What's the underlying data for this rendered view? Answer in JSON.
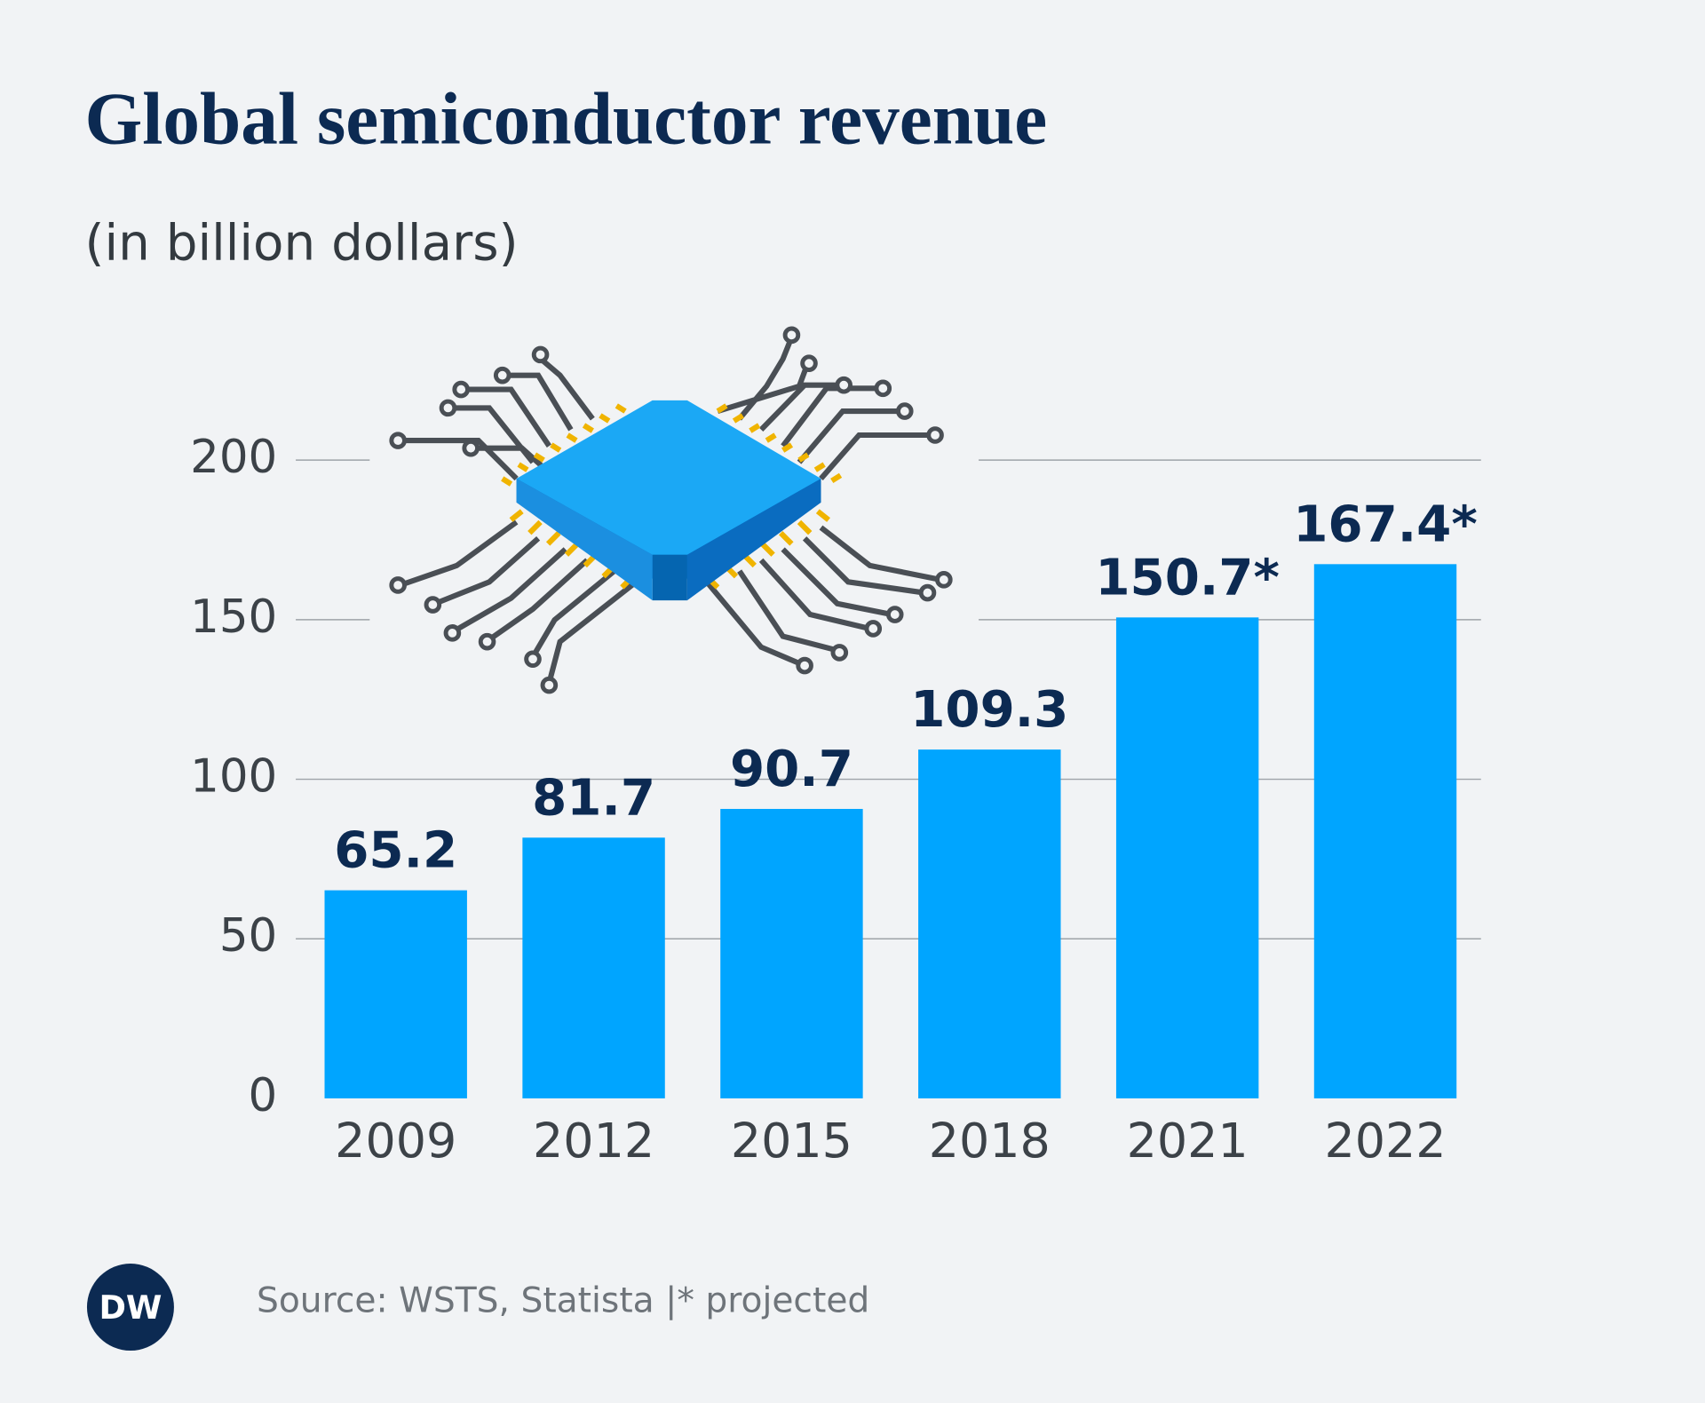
{
  "chart_data": {
    "type": "bar",
    "title": "Global semiconductor revenue",
    "subtitle": "(in billion dollars)",
    "categories": [
      "2009",
      "2012",
      "2015",
      "2018",
      "2021",
      "2022"
    ],
    "values": [
      65.2,
      81.7,
      90.7,
      109.3,
      150.7,
      167.4
    ],
    "value_labels": [
      "65.2",
      "81.7",
      "90.7",
      "109.3",
      "150.7*",
      "167.4*"
    ],
    "color": "#00a5ff",
    "ylim": [
      0,
      200
    ],
    "yticks": [
      0,
      50,
      100,
      150,
      200
    ],
    "grid": true,
    "source": "Source: WSTS, Statista |* projected",
    "logo": "DW"
  }
}
